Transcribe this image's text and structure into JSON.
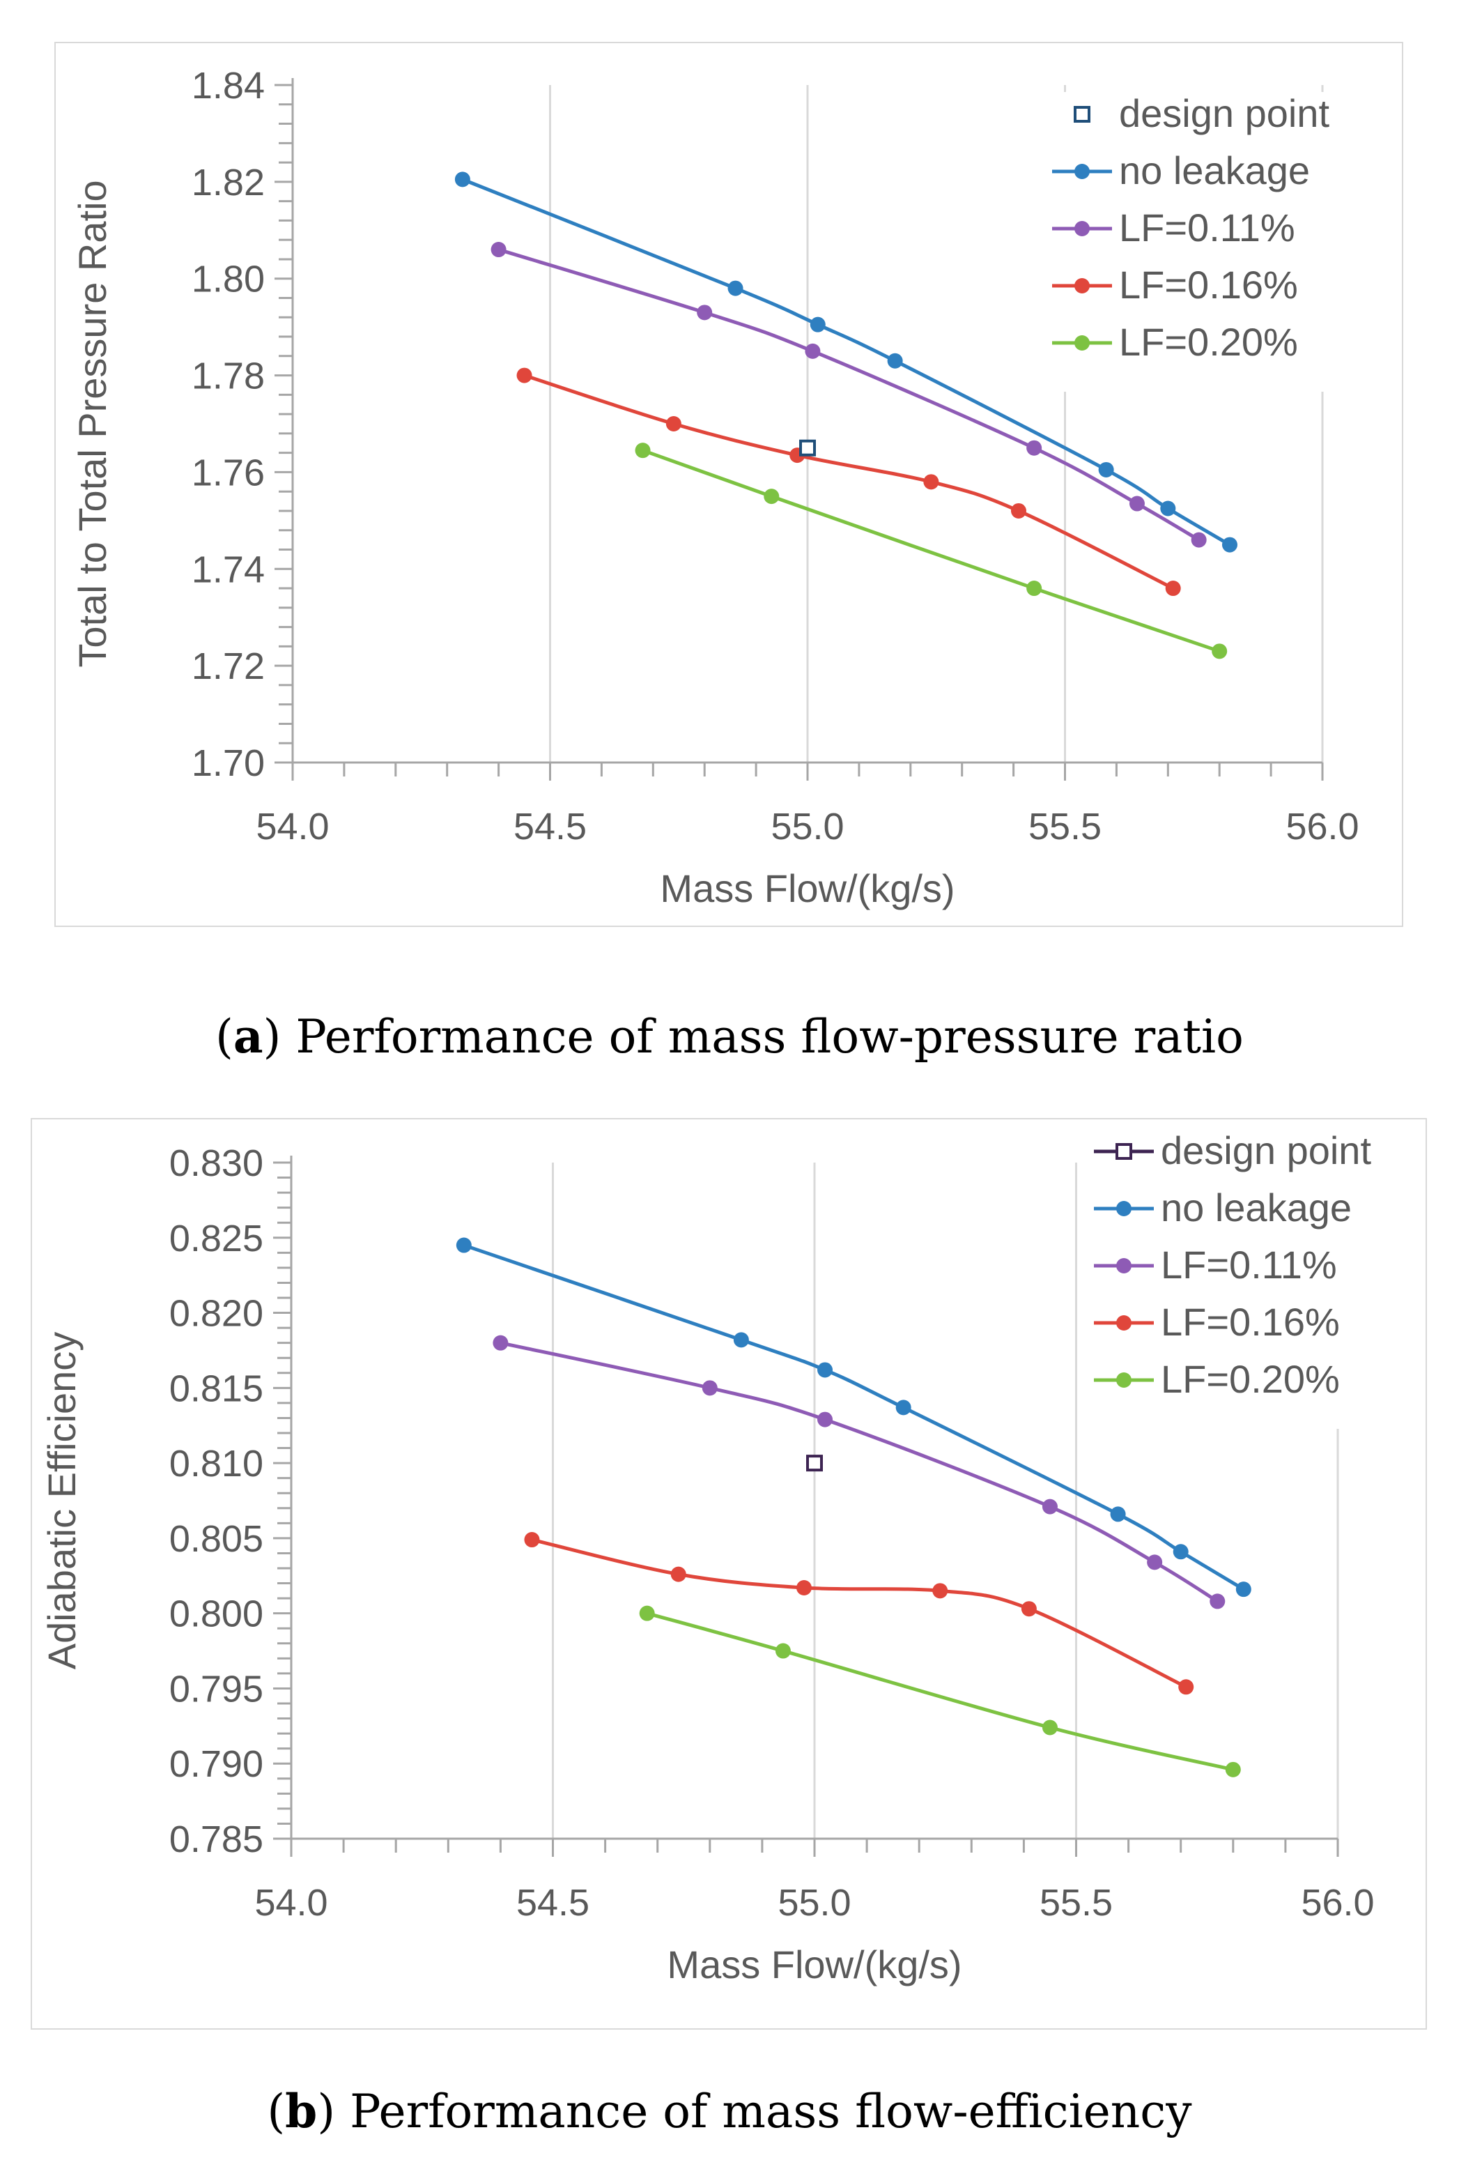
{
  "chart_data": [
    {
      "type": "line",
      "xlabel": "Mass Flow/(kg/s)",
      "ylabel": "Total to Total Pressure Ratio",
      "xlim": [
        54.0,
        56.0
      ],
      "ylim": [
        1.7,
        1.84
      ],
      "xticks": [
        "54.0",
        "54.5",
        "55.0",
        "55.5",
        "56.0"
      ],
      "yticks": [
        "1.70",
        "1.72",
        "1.74",
        "1.76",
        "1.78",
        "1.80",
        "1.82",
        "1.84"
      ],
      "legend_position": "top-right",
      "design_point": {
        "name": "design point",
        "x": 55.0,
        "y": 1.765,
        "color": "#1f4e79"
      },
      "series": [
        {
          "name": "no leakage",
          "color": "#2e7fc0",
          "x": [
            54.33,
            54.86,
            55.02,
            55.17,
            55.58,
            55.7,
            55.82
          ],
          "y": [
            1.8205,
            1.798,
            1.7905,
            1.783,
            1.7605,
            1.7525,
            1.745
          ]
        },
        {
          "name": "LF=0.11%",
          "color": "#8e5bb5",
          "x": [
            54.4,
            54.8,
            55.01,
            55.44,
            55.64,
            55.76
          ],
          "y": [
            1.806,
            1.793,
            1.785,
            1.765,
            1.7535,
            1.746
          ]
        },
        {
          "name": "LF=0.16%",
          "color": "#e0463b",
          "x": [
            54.45,
            54.74,
            54.98,
            55.24,
            55.41,
            55.71
          ],
          "y": [
            1.78,
            1.77,
            1.7635,
            1.758,
            1.752,
            1.736
          ]
        },
        {
          "name": "LF=0.20%",
          "color": "#7dc242",
          "x": [
            54.68,
            54.93,
            55.44,
            55.8
          ],
          "y": [
            1.7645,
            1.755,
            1.736,
            1.723
          ]
        }
      ]
    },
    {
      "type": "line",
      "xlabel": "Mass Flow/(kg/s)",
      "ylabel": "Adiabatic Efficiency",
      "xlim": [
        54.0,
        56.0
      ],
      "ylim": [
        0.785,
        0.83
      ],
      "xticks": [
        "54.0",
        "54.5",
        "55.0",
        "55.5",
        "56.0"
      ],
      "yticks": [
        "0.785",
        "0.790",
        "0.795",
        "0.800",
        "0.805",
        "0.810",
        "0.815",
        "0.820",
        "0.825",
        "0.830"
      ],
      "legend_position": "top-right",
      "design_point": {
        "name": "design point",
        "x": 55.0,
        "y": 0.81,
        "color": "#3d2452"
      },
      "series": [
        {
          "name": "no leakage",
          "color": "#2e7fc0",
          "x": [
            54.33,
            54.86,
            55.02,
            55.17,
            55.58,
            55.7,
            55.82
          ],
          "y": [
            0.8245,
            0.8182,
            0.8162,
            0.8137,
            0.8066,
            0.8041,
            0.8016
          ]
        },
        {
          "name": "LF=0.11%",
          "color": "#8e5bb5",
          "x": [
            54.4,
            54.8,
            55.02,
            55.45,
            55.65,
            55.77
          ],
          "y": [
            0.818,
            0.815,
            0.8129,
            0.8071,
            0.8034,
            0.8008
          ]
        },
        {
          "name": "LF=0.16%",
          "color": "#e0463b",
          "x": [
            54.46,
            54.74,
            54.98,
            55.24,
            55.41,
            55.71
          ],
          "y": [
            0.8049,
            0.8026,
            0.8017,
            0.8015,
            0.8003,
            0.7951
          ]
        },
        {
          "name": "LF=0.20%",
          "color": "#7dc242",
          "x": [
            54.68,
            54.94,
            55.45,
            55.8
          ],
          "y": [
            0.8,
            0.7975,
            0.7924,
            0.7896
          ]
        }
      ]
    }
  ],
  "captions": [
    {
      "label": "a",
      "text": "Performance of mass flow-pressure ratio"
    },
    {
      "label": "b",
      "text": "Performance of mass flow-efficiency"
    }
  ],
  "colors": {
    "axis": "#a6a6a6",
    "grid": "#d9d9d9",
    "text": "#595959"
  }
}
